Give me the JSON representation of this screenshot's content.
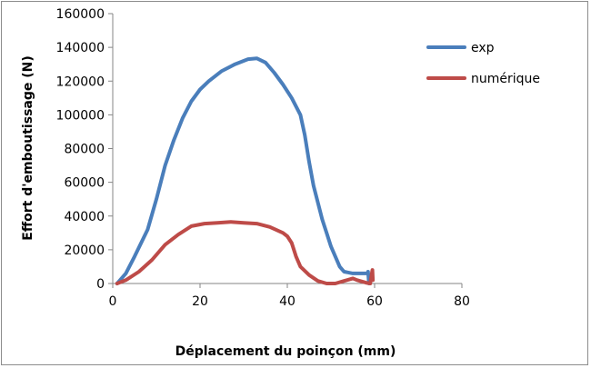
{
  "chart_data": {
    "type": "line",
    "title": "",
    "xlabel": "Déplacement du poinçon (mm)",
    "ylabel": "Effort d'emboutissage (N)",
    "xlim": [
      0,
      80
    ],
    "ylim": [
      0,
      160000
    ],
    "x_ticks": [
      "0",
      "20",
      "40",
      "60",
      "80"
    ],
    "y_ticks": [
      "0",
      "20000",
      "40000",
      "60000",
      "80000",
      "100000",
      "120000",
      "140000",
      "160000"
    ],
    "grid": false,
    "legend_position": "right",
    "series": [
      {
        "name": "exp",
        "color": "#4a7ebb",
        "points": [
          [
            1,
            0
          ],
          [
            3,
            6000
          ],
          [
            5,
            16000
          ],
          [
            8,
            32000
          ],
          [
            10,
            50000
          ],
          [
            12,
            70000
          ],
          [
            14,
            85000
          ],
          [
            16,
            98000
          ],
          [
            18,
            108000
          ],
          [
            20,
            115000
          ],
          [
            22,
            120000
          ],
          [
            25,
            126000
          ],
          [
            28,
            130000
          ],
          [
            31,
            133000
          ],
          [
            33,
            133500
          ],
          [
            35,
            131000
          ],
          [
            37,
            125000
          ],
          [
            39,
            118000
          ],
          [
            41,
            110000
          ],
          [
            43,
            100000
          ],
          [
            44,
            88000
          ],
          [
            45,
            72000
          ],
          [
            46,
            58000
          ],
          [
            47,
            48000
          ],
          [
            48,
            38000
          ],
          [
            49,
            30000
          ],
          [
            50,
            22000
          ],
          [
            51,
            16000
          ],
          [
            52,
            10000
          ],
          [
            53,
            7000
          ],
          [
            55,
            6000
          ],
          [
            57,
            6000
          ],
          [
            58.5,
            6000
          ],
          [
            58.5,
            7000
          ],
          [
            58.7,
            0
          ]
        ]
      },
      {
        "name": "numérique",
        "color": "#be4b48",
        "points": [
          [
            1,
            0
          ],
          [
            3,
            2000
          ],
          [
            6,
            7000
          ],
          [
            9,
            14000
          ],
          [
            12,
            23000
          ],
          [
            15,
            29000
          ],
          [
            18,
            34000
          ],
          [
            21,
            35500
          ],
          [
            24,
            36000
          ],
          [
            27,
            36500
          ],
          [
            30,
            36000
          ],
          [
            33,
            35500
          ],
          [
            36,
            33500
          ],
          [
            39,
            30000
          ],
          [
            40,
            28000
          ],
          [
            41,
            24000
          ],
          [
            42,
            16000
          ],
          [
            43,
            10000
          ],
          [
            45,
            5000
          ],
          [
            47,
            1500
          ],
          [
            49,
            0
          ],
          [
            51,
            0
          ],
          [
            53,
            1500
          ],
          [
            55,
            3000
          ],
          [
            56,
            2000
          ],
          [
            58,
            500
          ],
          [
            59,
            0
          ],
          [
            59.3,
            5000
          ],
          [
            59.5,
            8000
          ],
          [
            59.6,
            2000
          ]
        ]
      }
    ]
  }
}
